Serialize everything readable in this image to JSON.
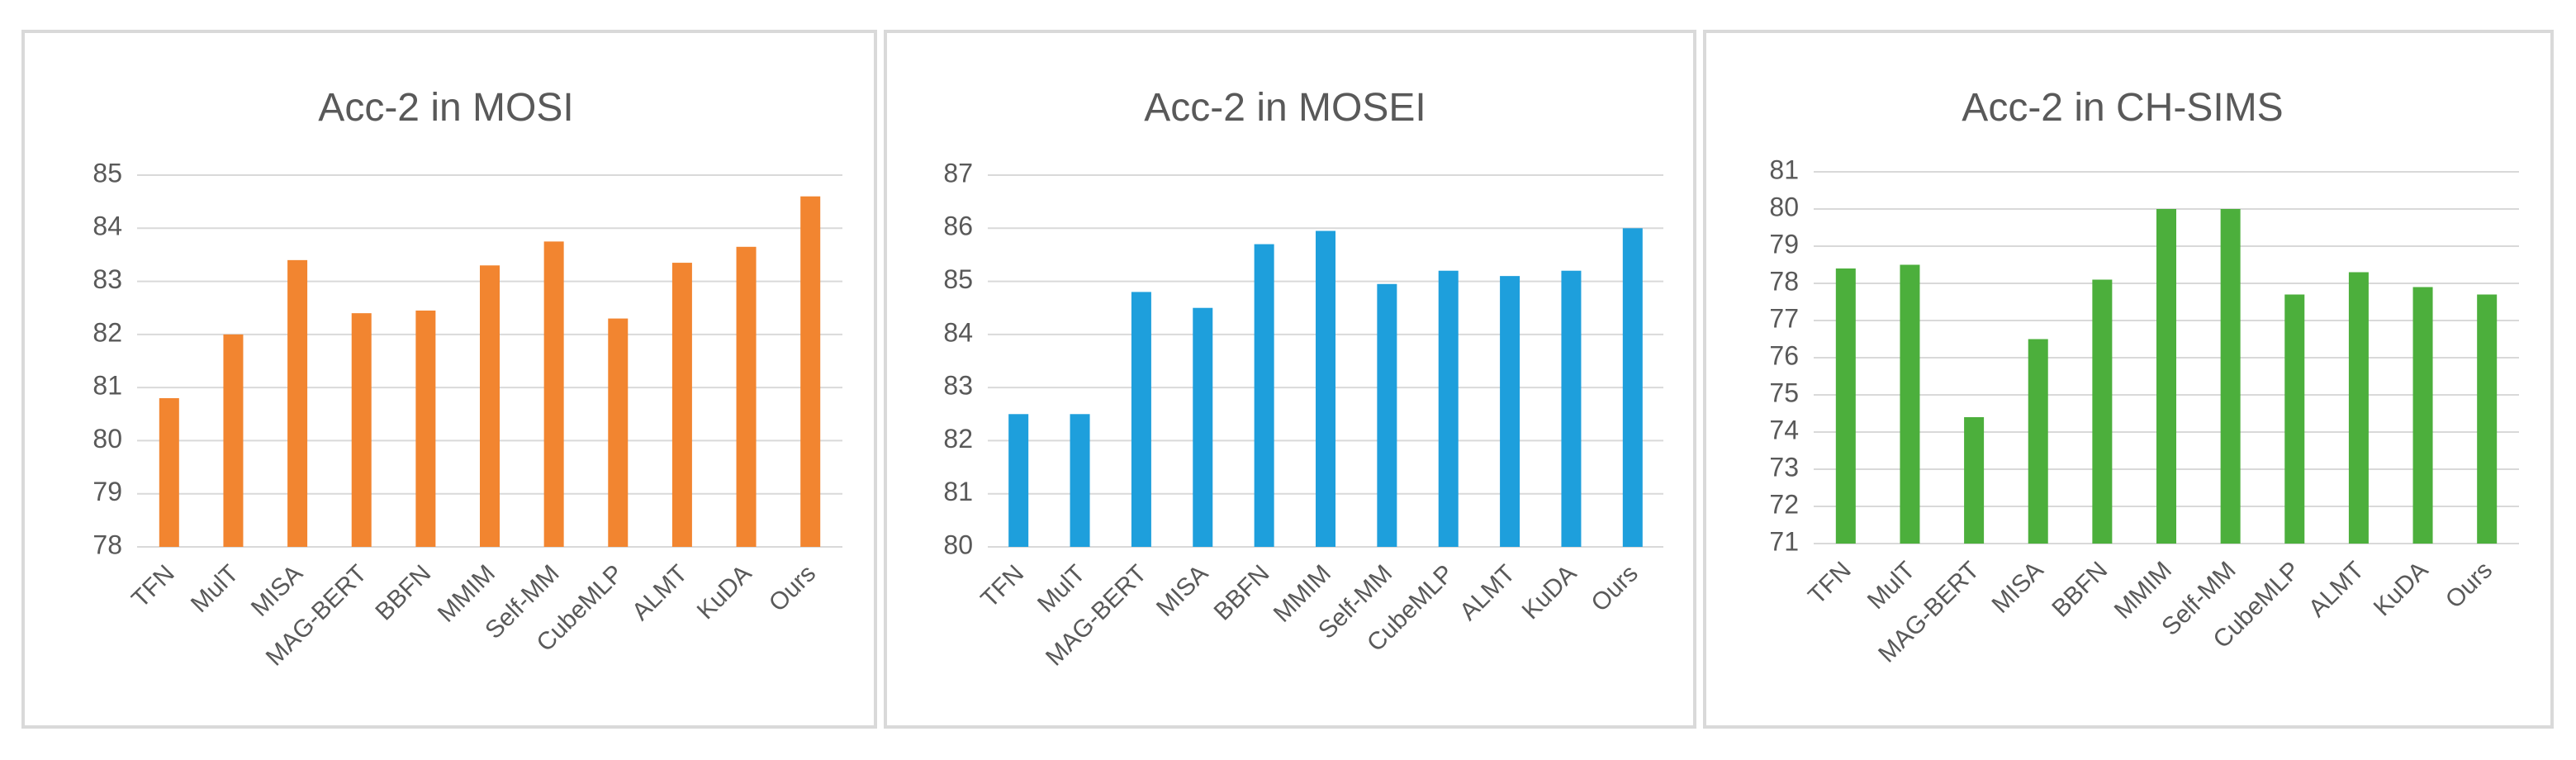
{
  "chart_data": [
    {
      "type": "bar",
      "title": "Acc-2 in MOSI",
      "xlabel": "",
      "ylabel": "",
      "ylim": [
        78,
        85
      ],
      "yticks": [
        78,
        79,
        80,
        81,
        82,
        83,
        84,
        85
      ],
      "grid": true,
      "color": "#f28530",
      "categories": [
        "TFN",
        "MulT",
        "MISA",
        "MAG-BERT",
        "BBFN",
        "MMIM",
        "Self-MM",
        "CubeMLP",
        "ALMT",
        "KuDA",
        "Ours"
      ],
      "values": [
        80.8,
        82.0,
        83.4,
        82.4,
        82.45,
        83.3,
        83.75,
        82.3,
        83.35,
        83.65,
        84.6
      ]
    },
    {
      "type": "bar",
      "title": "Acc-2 in MOSEI",
      "xlabel": "",
      "ylabel": "",
      "ylim": [
        80,
        87
      ],
      "yticks": [
        80,
        81,
        82,
        83,
        84,
        85,
        86,
        87
      ],
      "grid": true,
      "color": "#1e9fdc",
      "categories": [
        "TFN",
        "MulT",
        "MAG-BERT",
        "MISA",
        "BBFN",
        "MMIM",
        "Self-MM",
        "CubeMLP",
        "ALMT",
        "KuDA",
        "Ours"
      ],
      "values": [
        82.5,
        82.5,
        84.8,
        84.5,
        85.7,
        85.95,
        84.95,
        85.2,
        85.1,
        85.2,
        86.0
      ]
    },
    {
      "type": "bar",
      "title": "Acc-2 in CH-SIMS",
      "xlabel": "",
      "ylabel": "",
      "ylim": [
        71,
        81
      ],
      "yticks": [
        71,
        72,
        73,
        74,
        75,
        76,
        77,
        78,
        79,
        80,
        81
      ],
      "grid": true,
      "color": "#4caf3c",
      "categories": [
        "TFN",
        "MulT",
        "MAG-BERT",
        "MISA",
        "BBFN",
        "MMIM",
        "Self-MM",
        "CubeMLP",
        "ALMT",
        "KuDA",
        "Ours"
      ],
      "values": [
        78.4,
        78.5,
        74.4,
        76.5,
        78.1,
        80.0,
        80.0,
        77.7,
        78.3,
        77.9,
        77.7
      ]
    }
  ]
}
